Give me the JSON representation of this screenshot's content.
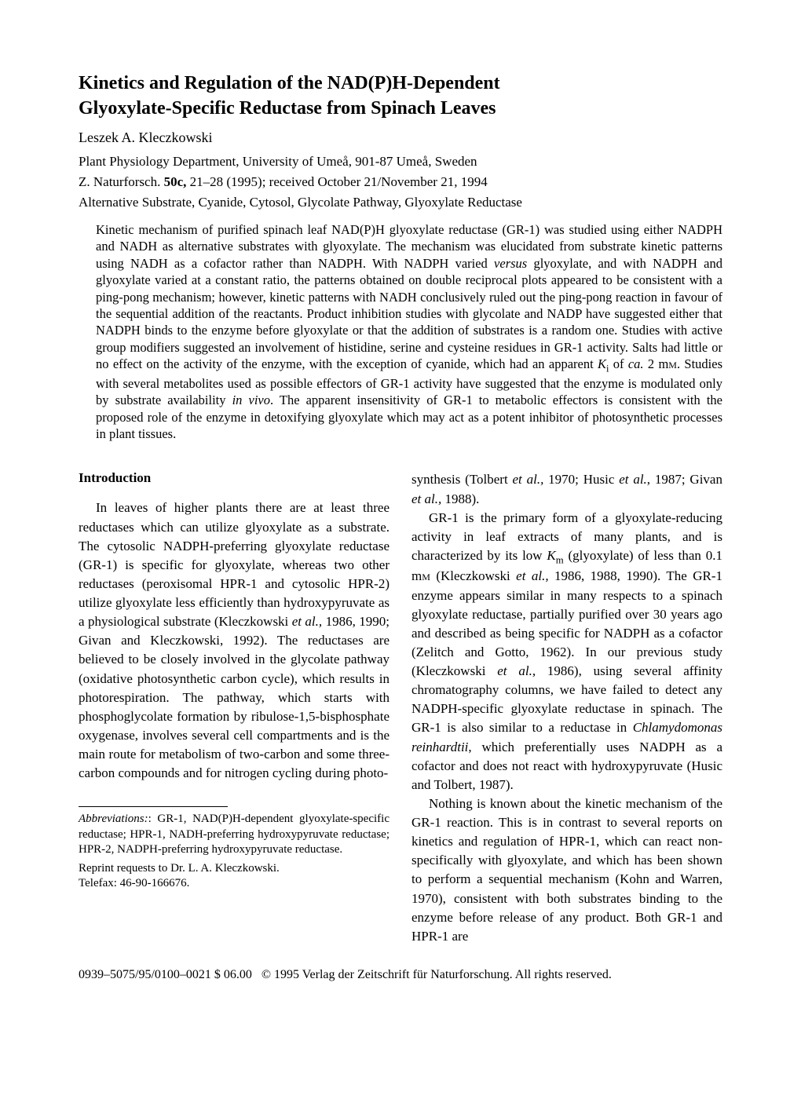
{
  "title_line1": "Kinetics and Regulation of the NAD(P)H-Dependent",
  "title_line2": "Glyoxylate-Specific Reductase from Spinach Leaves",
  "author": "Leszek A. Kleczkowski",
  "affiliation": "Plant Physiology Department, University of Umeå, 901-87 Umeå, Sweden",
  "citation_prefix": "Z. Naturforsch. ",
  "citation_vol": "50c,",
  "citation_rest": " 21–28 (1995); received October 21/November 21, 1994",
  "keywords": "Alternative Substrate, Cyanide, Cytosol, Glycolate Pathway, Glyoxylate Reductase",
  "abstract_html": "Kinetic mechanism of purified spinach leaf NAD(P)H glyoxylate reductase (GR-1) was studied using either NADPH and NADH as alternative substrates with glyoxylate. The mechanism was elucidated from substrate kinetic patterns using NADH as a cofactor rather than NADPH. With NADPH varied <span class=\"italic\">versus</span> glyoxylate, and with NADPH and glyoxylate varied at a constant ratio, the patterns obtained on double reciprocal plots appeared to be consistent with a ping-pong mechanism; however, kinetic patterns with NADH conclusively ruled out the ping-pong reaction in favour of the sequential addition of the reactants. Product inhibition studies with glycolate and NADP have suggested either that NADPH binds to the enzyme before glyoxylate or that the addition of substrates is a random one. Studies with active group modifiers suggested an involvement of histidine, serine and cysteine residues in GR-1 activity. Salts had little or no effect on the activity of the enzyme, with the exception of cyanide, which had an apparent <span class=\"italic\">K</span><sub>i</sub> of <span class=\"italic\">ca.</span> 2 m<span class=\"smallcaps\">m</span>. Studies with several metabolites used as possible effectors of GR-1 activity have suggested that the enzyme is modulated only by substrate availability <span class=\"italic\">in vivo</span>. The apparent insensitivity of GR-1 to metabolic effectors is consistent with the proposed role of the enzyme in detoxifying glyoxylate which may act as a potent inhibitor of photosynthetic processes in plant tissues.",
  "intro_heading": "Introduction",
  "left_para": "In leaves of higher plants there are at least three reductases which can utilize glyoxylate as a substrate. The cytosolic NADPH-preferring glyoxylate reductase (GR-1) is specific for glyoxylate, whereas two other reductases (peroxisomal HPR-1 and cytosolic HPR-2) utilize glyoxylate less efficiently than hydroxypyruvate as a physiological substrate (Kleczkowski <span class=\"italic\">et al.,</span> 1986, 1990; Givan and Kleczkowski, 1992). The reductases are believed to be closely involved in the glycolate pathway (oxidative photosynthetic carbon cycle), which results in photorespiration. The pathway, which starts with phosphoglycolate formation by ribulose-1,5-bisphosphate oxygenase, involves several cell compartments and is the main route for metabolism of two-carbon and some three-carbon compounds and for nitrogen cycling during photo-",
  "right_top_frag": "synthesis (Tolbert <span class=\"italic\">et al.,</span> 1970; Husic <span class=\"italic\">et al.</span>, 1987; Givan <span class=\"italic\">et al.,</span> 1988).",
  "right_para2": "GR-1 is the primary form of a glyoxylate-reducing activity in leaf extracts of many plants, and is characterized by its low <span class=\"italic\">K</span><sub>m</sub> (glyoxylate) of less than 0.1 m<span class=\"smallcaps\">m</span> (Kleczkowski <span class=\"italic\">et al.,</span> 1986, 1988, 1990). The GR-1 enzyme appears similar in many respects to a spinach glyoxylate reductase, partially purified over 30 years ago and described as being specific for NADPH as a cofactor (Zelitch and Gotto, 1962). In our previous study (Kleczkowski <span class=\"italic\">et al.,</span> 1986), using several affinity chromatography columns, we have failed to detect any NADPH-specific glyoxylate reductase in spinach. The GR-1 is also similar to a reductase in <span class=\"italic\">Chlamydomonas reinhardtii</span>, which preferentially uses NADPH as a cofactor and does not react with hydroxypyruvate (Husic and Tolbert, 1987).",
  "right_para3": "Nothing is known about the kinetic mechanism of the GR-1 reaction. This is in contrast to several reports on kinetics and regulation of HPR-1, which can react non-specifically with glyoxylate, and which has been shown to perform a sequential mechanism (Kohn and Warren, 1970), consistent with both substrates binding to the enzyme before release of any product. Both GR-1 and HPR-1 are",
  "footnote_abbrev": "<span class=\"italic\">Abbreviations:</span>: GR-1, NAD(P)H-dependent glyoxylate-specific reductase; HPR-1, NADH-preferring hydroxypyruvate reductase; HPR-2, NADPH-preferring hydroxypyruvate reductase.",
  "footnote_reprint": "Reprint requests to Dr. L. A. Kleczkowski.<br>Telefax: 46-90-166676.",
  "footer": "0939–5075/95/0100–0021 $ 06.00 &nbsp;&nbsp;© 1995 Verlag der Zeitschrift für Naturforschung. All rights reserved."
}
